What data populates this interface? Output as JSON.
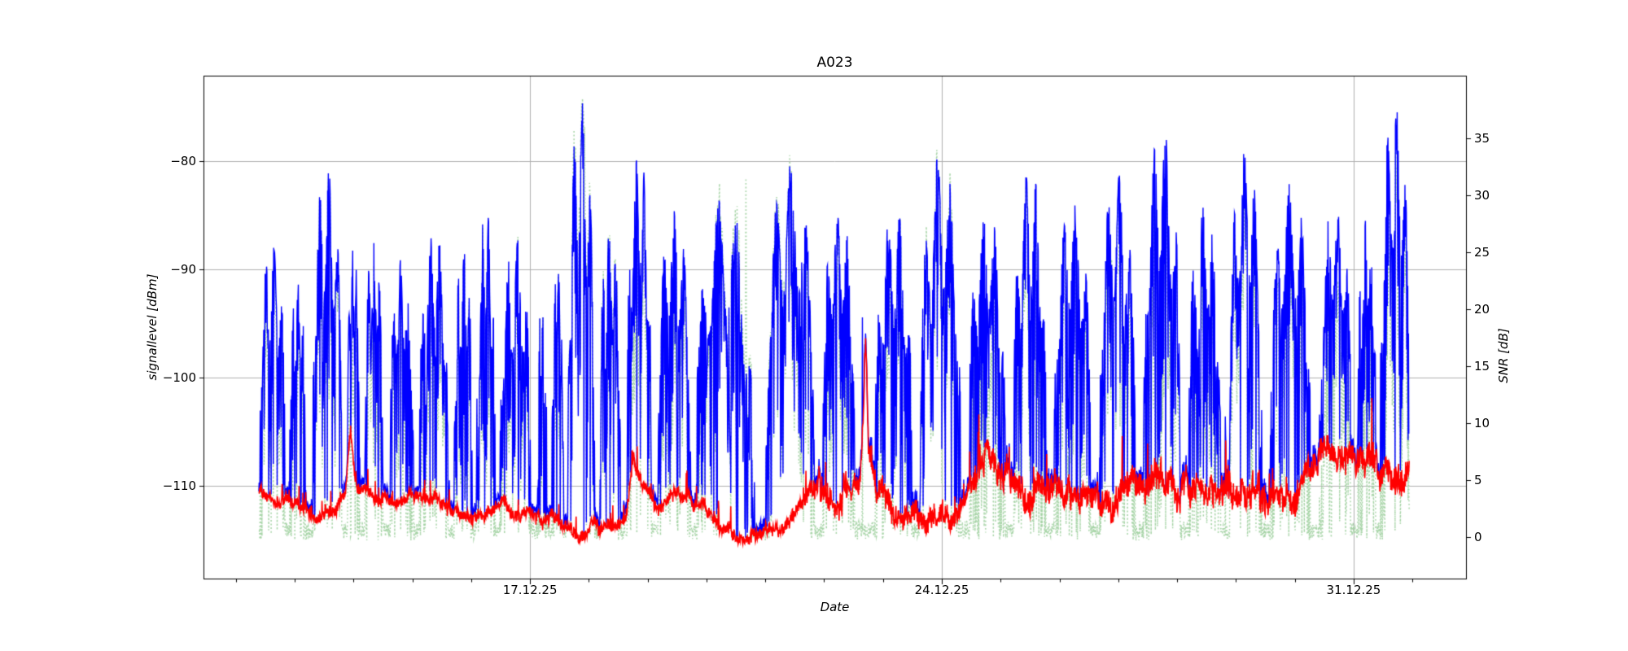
{
  "chart_data": {
    "type": "line",
    "title": "A023",
    "xlabel": "Date",
    "ylabel_left": "signallevel [dBm]",
    "ylabel_right": "SNR [dB]",
    "x_ticks_major": [
      {
        "day": 5,
        "label": "17.12.25"
      },
      {
        "day": 12,
        "label": "24.12.25"
      },
      {
        "day": 19,
        "label": "31.12.25"
      }
    ],
    "x_minor_every_days": 1,
    "xlim_days": [
      -0.55,
      20.91
    ],
    "ylim_left": [
      -118.6,
      -72.1
    ],
    "yticks_left": [
      {
        "value": -80,
        "label": "−80"
      },
      {
        "value": -90,
        "label": "−90"
      },
      {
        "value": -100,
        "label": "−100"
      },
      {
        "value": -110,
        "label": "−110"
      }
    ],
    "ylim_right": [
      -3.64,
      40.5
    ],
    "yticks_right": [
      {
        "value": 0,
        "label": "0"
      },
      {
        "value": 5,
        "label": "5"
      },
      {
        "value": 10,
        "label": "10"
      },
      {
        "value": 15,
        "label": "15"
      },
      {
        "value": 20,
        "label": "20"
      },
      {
        "value": 25,
        "label": "25"
      },
      {
        "value": 30,
        "label": "30"
      },
      {
        "value": 35,
        "label": "35"
      }
    ],
    "grid": {
      "color": "#b0b0b0",
      "horizontal_at": "yticks_left",
      "vertical_at": "x_ticks_major"
    },
    "legend": null,
    "series": [
      {
        "key": "green_dotted",
        "axis": "right",
        "color": "#a8d5a8",
        "line_style": "dotted",
        "line_width": 1.5
      },
      {
        "key": "blue",
        "axis": "left",
        "color": "#0000ff",
        "line_style": "solid",
        "line_width": 1.4
      },
      {
        "key": "red",
        "axis": "left",
        "color": "#ff0000",
        "line_style": "solid",
        "line_width": 1.6
      }
    ],
    "series_model": {
      "seed": 20231217,
      "step_days": 0.006,
      "t_start": 0.39,
      "t_end": 19.95,
      "noise_base": [
        [
          0.39,
          -110.6
        ],
        [
          0.8,
          -111.2
        ],
        [
          1.2,
          -112.3
        ],
        [
          1.6,
          -112.6
        ],
        [
          1.86,
          -111.0
        ],
        [
          1.95,
          -105.3
        ],
        [
          2.05,
          -110.8
        ],
        [
          2.5,
          -111.6
        ],
        [
          3.0,
          -111.2
        ],
        [
          3.4,
          -110.6
        ],
        [
          3.8,
          -112.2
        ],
        [
          4.2,
          -112.6
        ],
        [
          4.7,
          -112.2
        ],
        [
          5.1,
          -113.2
        ],
        [
          5.6,
          -114.2
        ],
        [
          6.3,
          -114.7
        ],
        [
          6.62,
          -113.6
        ],
        [
          6.75,
          -107.6
        ],
        [
          6.9,
          -110.2
        ],
        [
          7.15,
          -112.4
        ],
        [
          7.5,
          -111.0
        ],
        [
          7.8,
          -111.6
        ],
        [
          8.25,
          -114.4
        ],
        [
          8.95,
          -114.7
        ],
        [
          9.35,
          -113.7
        ],
        [
          9.75,
          -110.4
        ],
        [
          10.2,
          -109.8
        ],
        [
          10.6,
          -109.4
        ],
        [
          10.67,
          -104.0
        ],
        [
          10.705,
          -96.3
        ],
        [
          10.75,
          -107.0
        ],
        [
          10.9,
          -111.0
        ],
        [
          11.2,
          -112.6
        ],
        [
          11.6,
          -112.9
        ],
        [
          11.95,
          -113.3
        ],
        [
          12.25,
          -112.4
        ],
        [
          12.55,
          -109.9
        ],
        [
          13.0,
          -109.6
        ],
        [
          13.5,
          -110.4
        ],
        [
          14.0,
          -110.1
        ],
        [
          14.5,
          -110.9
        ],
        [
          15.0,
          -110.4
        ],
        [
          15.5,
          -110.1
        ],
        [
          16.0,
          -110.6
        ],
        [
          16.5,
          -110.3
        ],
        [
          17.0,
          -110.9
        ],
        [
          17.5,
          -110.4
        ],
        [
          18.0,
          -109.9
        ],
        [
          18.5,
          -109.1
        ],
        [
          18.9,
          -108.4
        ],
        [
          19.35,
          -108.9
        ],
        [
          19.7,
          -109.6
        ],
        [
          19.95,
          -109.9
        ]
      ],
      "noise_jitter": [
        [
          0.39,
          0.6
        ],
        [
          9.6,
          0.7
        ],
        [
          9.9,
          1.5
        ],
        [
          12.2,
          1.2
        ],
        [
          12.45,
          0.9
        ],
        [
          12.6,
          1.5
        ],
        [
          19.95,
          1.6
        ]
      ],
      "bursts": [
        [
          0.39,
          0.84,
          -87.5
        ],
        [
          0.91,
          1.19,
          -91.0
        ],
        [
          1.29,
          1.8,
          -80.3
        ],
        [
          1.9,
          2.11,
          -88.0
        ],
        [
          2.19,
          2.5,
          -86.5
        ],
        [
          2.61,
          3.02,
          -89.0
        ],
        [
          3.12,
          3.61,
          -86.0
        ],
        [
          3.71,
          4.02,
          -87.5
        ],
        [
          4.09,
          4.41,
          -84.5
        ],
        [
          4.49,
          5.01,
          -87.0
        ],
        [
          5.12,
          5.29,
          -92.5
        ],
        [
          5.37,
          5.57,
          -88.5
        ],
        [
          5.64,
          6.09,
          -74.2
        ],
        [
          6.18,
          6.54,
          -84.5
        ],
        [
          6.65,
          7.06,
          -79.0
        ],
        [
          7.17,
          7.73,
          -84.0
        ],
        [
          7.82,
          8.79,
          -83.0
        ],
        [
          9.0,
          9.83,
          -79.5
        ],
        [
          9.97,
          10.52,
          -84.0
        ],
        [
          10.87,
          11.49,
          -84.0
        ],
        [
          11.63,
          12.32,
          -79.0
        ],
        [
          12.46,
          13.08,
          -84.5
        ],
        [
          13.22,
          13.77,
          -80.5
        ],
        [
          13.91,
          14.53,
          -83.5
        ],
        [
          14.67,
          15.29,
          -81.0
        ],
        [
          15.43,
          16.05,
          -76.6
        ],
        [
          16.19,
          16.74,
          -84.0
        ],
        [
          16.88,
          17.44,
          -78.6
        ],
        [
          17.58,
          18.27,
          -82.0
        ],
        [
          18.41,
          18.96,
          -83.5
        ],
        [
          19.07,
          19.38,
          -85.0
        ],
        [
          19.45,
          19.95,
          -74.3
        ]
      ],
      "snr_spikes": [
        [
          5.93,
          36.0
        ],
        [
          8.67,
          31.5
        ]
      ],
      "snr_max": 38.5,
      "burst_drop_max": 20,
      "full_drop_prob": 0.05,
      "idle_pop_prob": 0.006,
      "idle_pop_range": [
        4,
        15
      ],
      "red_spike_prob": 0.02
    }
  }
}
